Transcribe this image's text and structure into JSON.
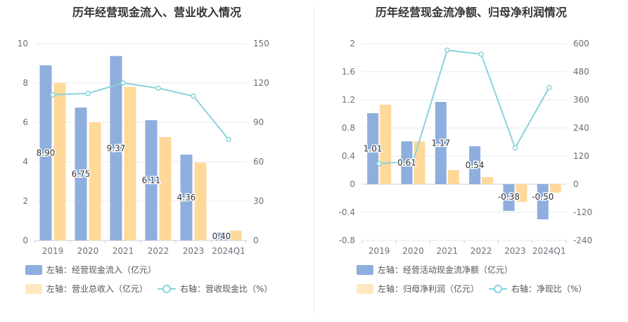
{
  "colors": {
    "bar_primary": "#8eaedd",
    "bar_secondary": "#ffd99a",
    "line": "#8ad3dc",
    "grid": "#e6e9f2",
    "axis_text": "#6e7079"
  },
  "chart_data": [
    {
      "type": "bar",
      "title": "历年经营现金流入、营业收入情况",
      "categories": [
        "2019",
        "2020",
        "2021",
        "2022",
        "2023",
        "2024Q1"
      ],
      "ylim_left": [
        0,
        10
      ],
      "ylim_right": [
        0,
        150
      ],
      "yticks_left": [
        "0",
        "2",
        "4",
        "6",
        "8",
        "10"
      ],
      "yticks_right": [
        "0",
        "30",
        "60",
        "90",
        "120",
        "150"
      ],
      "grid": true,
      "legend_position": "bottom",
      "series": [
        {
          "name": "左轴：经营现金流入（亿元）",
          "kind": "bar",
          "axis": "left",
          "color": "#8eaedd",
          "values": [
            8.9,
            6.75,
            9.37,
            6.11,
            4.36,
            0.4
          ],
          "labels": [
            "8.90",
            "6.75",
            "9.37",
            "6.11",
            "4.36",
            "0.40"
          ]
        },
        {
          "name": "左轴：营业总收入（亿元）",
          "kind": "bar",
          "axis": "left",
          "color": "#ffd99a",
          "values": [
            8.0,
            6.0,
            7.8,
            5.25,
            3.95,
            0.5
          ]
        },
        {
          "name": "右轴：营收现金比（%）",
          "kind": "line",
          "axis": "right",
          "color": "#8ad3dc",
          "values": [
            111,
            112,
            120,
            116,
            110,
            77
          ]
        }
      ]
    },
    {
      "type": "bar",
      "title": "历年经营现金流净额、归母净利润情况",
      "categories": [
        "2019",
        "2020",
        "2021",
        "2022",
        "2023",
        "2024Q1"
      ],
      "ylim_left": [
        -0.8,
        2
      ],
      "ylim_right": [
        -240,
        600
      ],
      "yticks_left": [
        "-0.8",
        "-0.4",
        "0",
        "0.4",
        "0.8",
        "1.2",
        "1.6",
        "2"
      ],
      "yticks_right": [
        "-240",
        "-120",
        "0",
        "120",
        "240",
        "360",
        "480",
        "600"
      ],
      "grid": true,
      "legend_position": "bottom",
      "series": [
        {
          "name": "左轴：经营活动现金流净额（亿元）",
          "kind": "bar",
          "axis": "left",
          "color": "#8eaedd",
          "values": [
            1.01,
            0.61,
            1.17,
            0.54,
            -0.38,
            -0.5
          ],
          "labels": [
            "1.01",
            "0.61",
            "1.17",
            "0.54",
            "-0.38",
            "-0.50"
          ]
        },
        {
          "name": "左轴：归母净利润（亿元）",
          "kind": "bar",
          "axis": "left",
          "color": "#ffd99a",
          "values": [
            1.13,
            0.61,
            0.2,
            0.1,
            -0.25,
            -0.12
          ]
        },
        {
          "name": "右轴：净现比（%）",
          "kind": "line",
          "axis": "right",
          "color": "#8ad3dc",
          "values": [
            88,
            98,
            572,
            555,
            155,
            412
          ]
        }
      ]
    }
  ]
}
